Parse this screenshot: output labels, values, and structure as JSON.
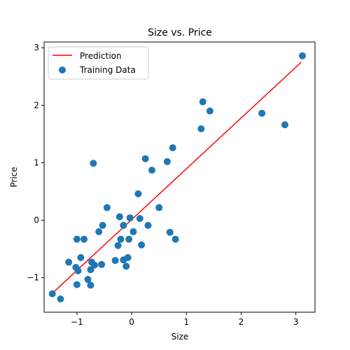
{
  "chart_data": {
    "type": "scatter",
    "title": "Size vs. Price",
    "xlabel": "Size",
    "ylabel": "Price",
    "xlim": [
      -1.6,
      3.35
    ],
    "ylim": [
      -1.6,
      3.1
    ],
    "xticks": [
      -1,
      0,
      1,
      2,
      3
    ],
    "xtick_labels": [
      "−1",
      "0",
      "1",
      "2",
      "3"
    ],
    "yticks": [
      -1,
      0,
      1,
      2,
      3
    ],
    "ytick_labels": [
      "−1",
      "0",
      "1",
      "2",
      "3"
    ],
    "grid": false,
    "legend_position": "top-left",
    "series": [
      {
        "name": "Prediction",
        "kind": "line",
        "color": "#ff0000",
        "x": [
          -1.45,
          3.1
        ],
        "y": [
          -1.27,
          2.75
        ]
      },
      {
        "name": "Training Data",
        "kind": "scatter",
        "color": "#1f77b4",
        "points": [
          [
            -1.45,
            -1.28
          ],
          [
            -1.3,
            -1.37
          ],
          [
            -1.15,
            -0.73
          ],
          [
            -1.02,
            -0.82
          ],
          [
            -1.0,
            -1.12
          ],
          [
            -0.98,
            -0.88
          ],
          [
            -0.93,
            -0.65
          ],
          [
            -0.87,
            -0.33
          ],
          [
            -1.0,
            -0.33
          ],
          [
            -0.8,
            -1.03
          ],
          [
            -0.75,
            -1.13
          ],
          [
            -0.75,
            -0.86
          ],
          [
            -0.73,
            -0.73
          ],
          [
            -0.68,
            -0.78
          ],
          [
            -0.7,
            0.99
          ],
          [
            -0.6,
            -0.2
          ],
          [
            -0.55,
            -0.77
          ],
          [
            -0.53,
            -0.09
          ],
          [
            -0.45,
            0.22
          ],
          [
            -0.3,
            -0.7
          ],
          [
            -0.25,
            -0.44
          ],
          [
            -0.22,
            0.06
          ],
          [
            -0.2,
            -0.33
          ],
          [
            -0.15,
            -0.09
          ],
          [
            -0.15,
            -0.69
          ],
          [
            -0.1,
            -0.8
          ],
          [
            -0.07,
            -0.65
          ],
          [
            -0.05,
            -0.33
          ],
          [
            -0.03,
            0.04
          ],
          [
            0.03,
            -0.2
          ],
          [
            0.12,
            0.46
          ],
          [
            0.15,
            0.03
          ],
          [
            0.18,
            -0.43
          ],
          [
            0.25,
            1.07
          ],
          [
            0.3,
            -0.09
          ],
          [
            0.37,
            0.87
          ],
          [
            0.5,
            0.22
          ],
          [
            0.65,
            1.02
          ],
          [
            0.7,
            -0.21
          ],
          [
            0.75,
            1.26
          ],
          [
            0.8,
            -0.33
          ],
          [
            1.27,
            1.59
          ],
          [
            1.3,
            2.06
          ],
          [
            1.43,
            1.9
          ],
          [
            2.38,
            1.86
          ],
          [
            2.8,
            1.66
          ],
          [
            3.12,
            2.86
          ]
        ]
      }
    ]
  }
}
